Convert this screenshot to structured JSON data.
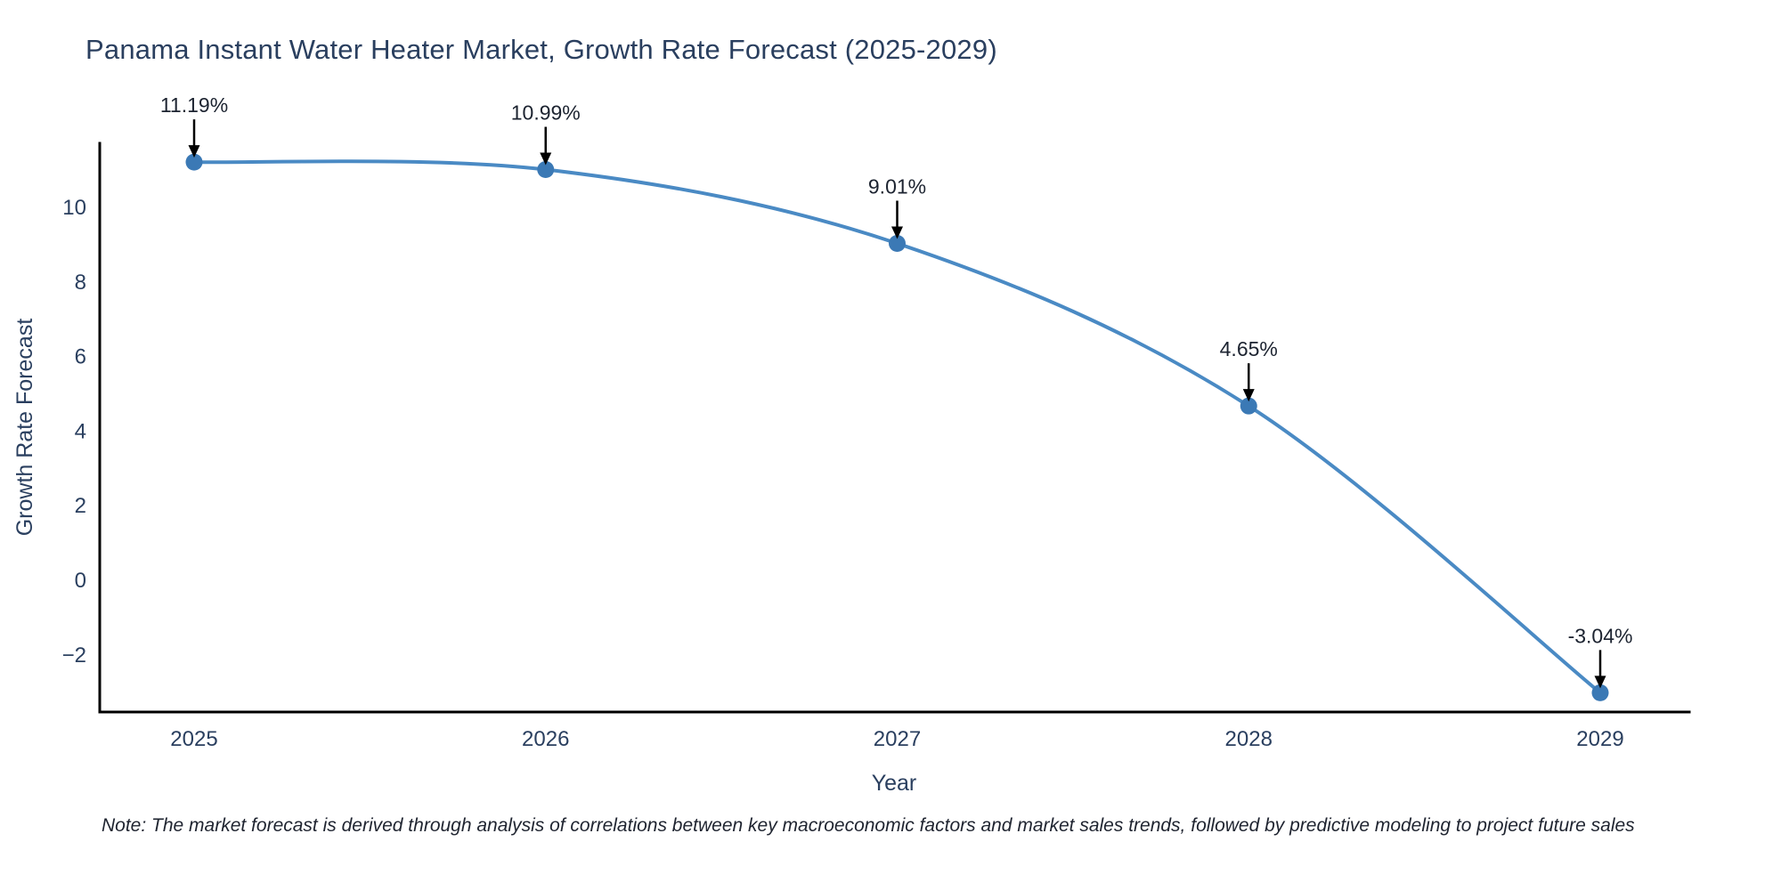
{
  "chart_data": {
    "type": "line",
    "title": "Panama Instant Water Heater Market, Growth Rate Forecast (2025-2029)",
    "xlabel": "Year",
    "ylabel": "Growth Rate Forecast",
    "x": [
      2025,
      2026,
      2027,
      2028,
      2029
    ],
    "y": [
      11.19,
      10.99,
      9.01,
      4.65,
      -3.04
    ],
    "point_labels": [
      "11.19%",
      "10.99%",
      "9.01%",
      "4.65%",
      "-3.04%"
    ],
    "xtick_labels": [
      "2025",
      "2026",
      "2027",
      "2028",
      "2029"
    ],
    "ytick_values": [
      -2,
      0,
      2,
      4,
      6,
      8,
      10
    ],
    "ytick_labels": [
      "−2",
      "0",
      "2",
      "4",
      "6",
      "8",
      "10"
    ],
    "xlim": [
      2024.73,
      2029.25
    ],
    "ylim": [
      -3.56,
      11.72
    ],
    "grid": false,
    "legend": "none",
    "line_shape": "spline",
    "colors": {
      "line": "#4a8ac4",
      "marker": "#3b79b5",
      "axis": "#000000",
      "arrow": "#000000",
      "text": "#2a3f5f",
      "annotation_text": "#1c2330",
      "background": "#ffffff"
    },
    "note": "Note: The market forecast is derived through analysis of correlations between key macroeconomic factors and market sales trends, followed by predictive modeling to project future sales"
  }
}
